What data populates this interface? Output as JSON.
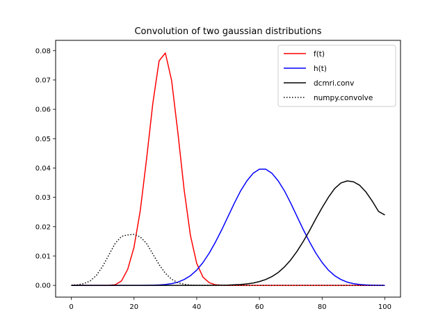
{
  "chart_data": {
    "type": "line",
    "title": "Convolution of two gaussian distributions",
    "xlabel": "",
    "ylabel": "",
    "xlim": [
      -5,
      105
    ],
    "ylim": [
      -0.004,
      0.0835
    ],
    "xticks": [
      0,
      20,
      40,
      60,
      80,
      100
    ],
    "xtick_labels": [
      "0",
      "20",
      "40",
      "60",
      "80",
      "100"
    ],
    "yticks": [
      0.0,
      0.01,
      0.02,
      0.03,
      0.04,
      0.05,
      0.06,
      0.07,
      0.08
    ],
    "ytick_labels": [
      "0.00",
      "0.01",
      "0.02",
      "0.03",
      "0.04",
      "0.05",
      "0.06",
      "0.07",
      "0.08"
    ],
    "grid": false,
    "legend_position": "top-right",
    "x": [
      0,
      2,
      4,
      6,
      8,
      10,
      12,
      14,
      16,
      18,
      20,
      22,
      24,
      26,
      28,
      30,
      32,
      34,
      36,
      38,
      40,
      42,
      44,
      46,
      48,
      50,
      52,
      54,
      56,
      58,
      60,
      62,
      64,
      66,
      68,
      70,
      72,
      74,
      76,
      78,
      80,
      82,
      84,
      86,
      88,
      90,
      92,
      94,
      96,
      98,
      100
    ],
    "series": [
      {
        "name": "f(t)",
        "color": "#ff0000",
        "style": "solid",
        "values": [
          0,
          0,
          0,
          0,
          0,
          0,
          2e-05,
          0.0002,
          0.0015,
          0.0055,
          0.013,
          0.0255,
          0.043,
          0.062,
          0.0765,
          0.0792,
          0.0698,
          0.052,
          0.0325,
          0.017,
          0.0075,
          0.0028,
          0.0009,
          0.0002,
          5e-05,
          0,
          0,
          0,
          0,
          0,
          0,
          0,
          0,
          0,
          0,
          0,
          0,
          0,
          0,
          0,
          0,
          0,
          0,
          0,
          0,
          0,
          0,
          0,
          0,
          0,
          0
        ]
      },
      {
        "name": "h(t)",
        "color": "#0000ff",
        "style": "solid",
        "values": [
          0,
          0,
          0,
          0,
          0,
          0,
          0,
          0,
          0,
          0,
          0,
          1e-05,
          3e-05,
          7e-05,
          0.00015,
          0.0003,
          0.0006,
          0.0011,
          0.002,
          0.0033,
          0.0052,
          0.0078,
          0.011,
          0.0148,
          0.019,
          0.0235,
          0.028,
          0.0322,
          0.0356,
          0.0382,
          0.0396,
          0.0396,
          0.0382,
          0.0356,
          0.0322,
          0.028,
          0.0235,
          0.019,
          0.0148,
          0.011,
          0.0078,
          0.0052,
          0.0033,
          0.002,
          0.0011,
          0.0006,
          0.0003,
          0.00015,
          7e-05,
          3e-05,
          1e-05
        ]
      },
      {
        "name": "dcmri.conv",
        "color": "#000000",
        "style": "solid",
        "values": [
          0,
          0,
          0,
          0,
          0,
          0,
          0,
          0,
          0,
          0,
          0,
          0,
          0,
          0,
          0,
          0,
          0,
          0,
          0,
          0,
          0,
          0,
          1e-05,
          2e-05,
          5e-05,
          0.0001,
          0.0002,
          0.0003,
          0.0005,
          0.0008,
          0.0013,
          0.002,
          0.003,
          0.0044,
          0.0063,
          0.0087,
          0.0116,
          0.015,
          0.0187,
          0.0227,
          0.0265,
          0.03,
          0.033,
          0.0349,
          0.0356,
          0.0353,
          0.0341,
          0.0318,
          0.0287,
          0.0252,
          0.024
        ]
      },
      {
        "name": "numpy.convolve",
        "color": "#000000",
        "style": "dotted",
        "values": [
          6e-05,
          0.0002,
          0.0006,
          0.0015,
          0.0034,
          0.0065,
          0.0104,
          0.0143,
          0.0167,
          0.0172,
          0.0174,
          0.0165,
          0.0143,
          0.0107,
          0.0071,
          0.0041,
          0.0021,
          0.0009,
          0.0004,
          0.0001,
          5e-05,
          2e-05,
          1e-05,
          0,
          0,
          0,
          0,
          0,
          0,
          0,
          0,
          0,
          0,
          0,
          0,
          0,
          0,
          0,
          0,
          0,
          0,
          0,
          0,
          0,
          0,
          0,
          0,
          0,
          0,
          0,
          0
        ]
      }
    ]
  }
}
